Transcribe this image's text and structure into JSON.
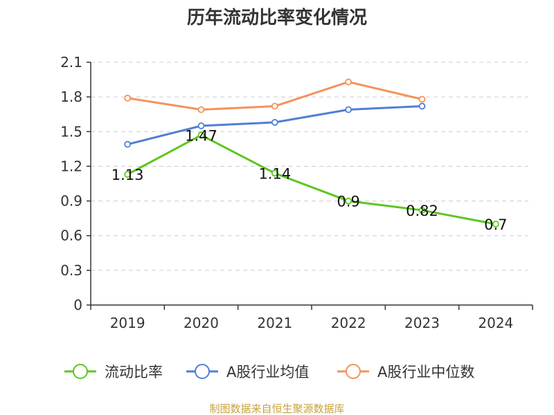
{
  "chart_data": {
    "type": "line",
    "title": "历年流动比率变化情况",
    "categories": [
      "2019",
      "2020",
      "2021",
      "2022",
      "2023",
      "2024"
    ],
    "y_ticks": [
      "0",
      "0.3",
      "0.6",
      "0.9",
      "1.2",
      "1.5",
      "1.8",
      "2.1"
    ],
    "ylim": [
      0,
      2.1
    ],
    "grid": true,
    "legend_position": "bottom",
    "series": [
      {
        "name": "流动比率",
        "color": "#5cc620",
        "values": [
          1.13,
          1.47,
          1.14,
          0.9,
          0.82,
          0.7
        ],
        "labels": [
          "1.13",
          "1.47",
          "1.14",
          "0.9",
          "0.82",
          "0.7"
        ]
      },
      {
        "name": "A股行业均值",
        "color": "#4f7fd6",
        "values": [
          1.39,
          1.55,
          1.58,
          1.69,
          1.72,
          null
        ]
      },
      {
        "name": "A股行业中位数",
        "color": "#f5925b",
        "values": [
          1.79,
          1.69,
          1.72,
          1.93,
          1.78,
          null
        ]
      }
    ]
  },
  "source_text": "制图数据来自恒生聚源数据库"
}
